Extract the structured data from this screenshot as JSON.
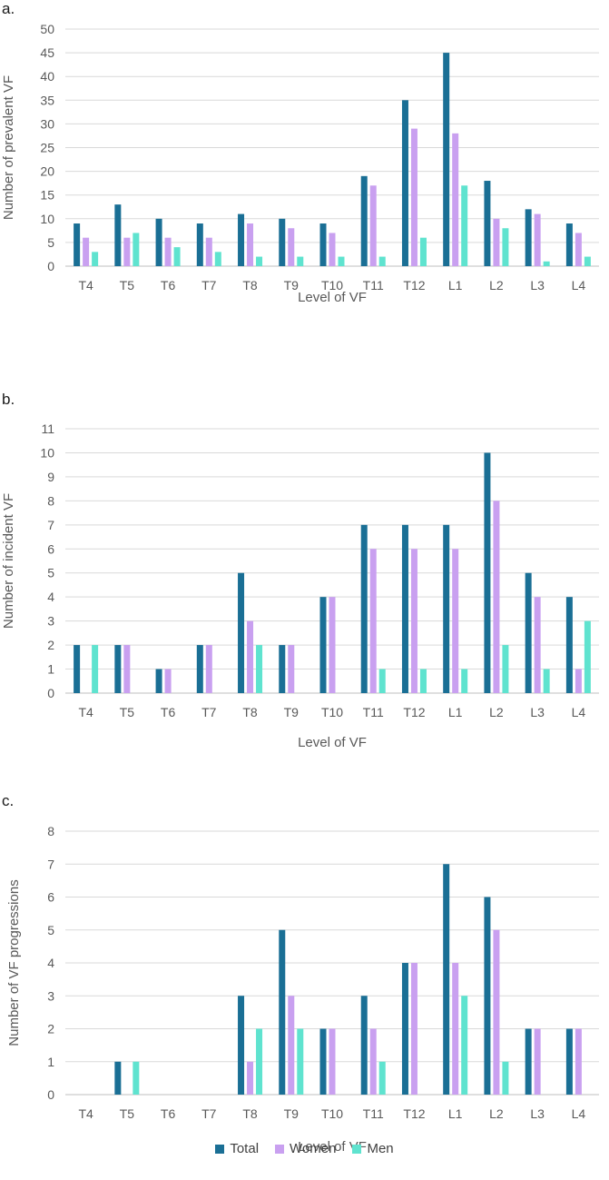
{
  "colors": {
    "Total": "#1a6f95",
    "Women": "#c9a0f0",
    "Men": "#5fe3cf"
  },
  "legend": [
    {
      "name": "Total",
      "color": "#1a6f95"
    },
    {
      "name": "Women",
      "color": "#c9a0f0"
    },
    {
      "name": "Men",
      "color": "#5fe3cf"
    }
  ],
  "chart_data": [
    {
      "panel": "a.",
      "type": "bar",
      "xlabel": "Level of VF",
      "ylabel": "Number of prevalent VF",
      "ylim": [
        0,
        50
      ],
      "ytick_step": 5,
      "grid": true,
      "categories": [
        "T4",
        "T5",
        "T6",
        "T7",
        "T8",
        "T9",
        "T10",
        "T11",
        "T12",
        "L1",
        "L2",
        "L3",
        "L4"
      ],
      "series": [
        {
          "name": "Total",
          "values": [
            9,
            13,
            10,
            9,
            11,
            10,
            9,
            19,
            35,
            45,
            18,
            12,
            9
          ]
        },
        {
          "name": "Women",
          "values": [
            6,
            6,
            6,
            6,
            9,
            8,
            7,
            17,
            29,
            28,
            10,
            11,
            7
          ]
        },
        {
          "name": "Men",
          "values": [
            3,
            7,
            4,
            3,
            2,
            2,
            2,
            2,
            6,
            17,
            8,
            1,
            2
          ]
        }
      ]
    },
    {
      "panel": "b.",
      "type": "bar",
      "xlabel": "Level of VF",
      "ylabel": "Number of incident VF",
      "ylim": [
        0,
        11
      ],
      "ytick_step": 1,
      "grid": true,
      "categories": [
        "T4",
        "T5",
        "T6",
        "T7",
        "T8",
        "T9",
        "T10",
        "T11",
        "T12",
        "L1",
        "L2",
        "L3",
        "L4"
      ],
      "series": [
        {
          "name": "Total",
          "values": [
            2,
            2,
            1,
            2,
            5,
            2,
            4,
            7,
            7,
            7,
            10,
            5,
            4
          ]
        },
        {
          "name": "Women",
          "values": [
            0,
            2,
            1,
            2,
            3,
            2,
            4,
            6,
            6,
            6,
            8,
            4,
            1
          ]
        },
        {
          "name": "Men",
          "values": [
            2,
            0,
            0,
            0,
            2,
            0,
            0,
            1,
            1,
            1,
            2,
            1,
            3
          ]
        }
      ]
    },
    {
      "panel": "c.",
      "type": "bar",
      "xlabel": "Level of VF",
      "ylabel": "Number of VF progressions",
      "ylim": [
        0,
        8
      ],
      "ytick_step": 1,
      "grid": true,
      "categories": [
        "T4",
        "T5",
        "T6",
        "T7",
        "T8",
        "T9",
        "T10",
        "T11",
        "T12",
        "L1",
        "L2",
        "L3",
        "L4"
      ],
      "series": [
        {
          "name": "Total",
          "values": [
            0,
            1,
            0,
            0,
            3,
            5,
            2,
            3,
            4,
            7,
            6,
            2,
            2
          ]
        },
        {
          "name": "Women",
          "values": [
            0,
            0,
            0,
            0,
            1,
            3,
            2,
            2,
            4,
            4,
            5,
            2,
            2
          ]
        },
        {
          "name": "Men",
          "values": [
            0,
            1,
            0,
            0,
            2,
            2,
            0,
            1,
            0,
            3,
            1,
            0,
            0
          ]
        }
      ]
    }
  ]
}
